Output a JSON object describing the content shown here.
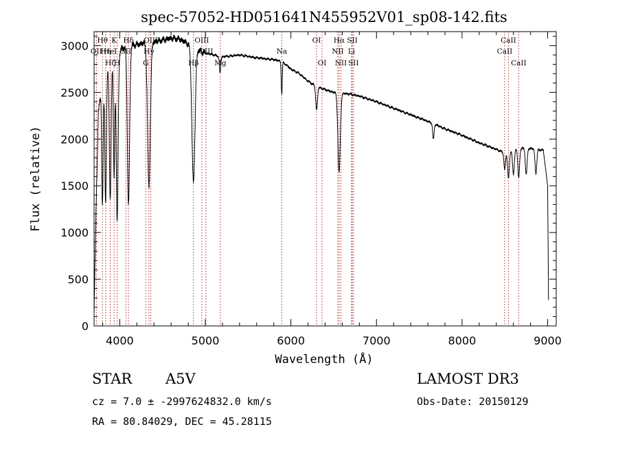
{
  "colors": {
    "spectrum": "#000000",
    "line_marker": "#b22222",
    "axes": "#000000"
  },
  "chart_data": {
    "type": "line",
    "title": "spec-57052-HD051641N455952V01_sp08-142.fits",
    "xlabel": "Wavelength (Å)",
    "ylabel": "Flux (relative)",
    "xlim": [
      3700,
      9100
    ],
    "ylim": [
      0,
      3150
    ],
    "x_ticks": [
      4000,
      5000,
      6000,
      7000,
      8000,
      9000
    ],
    "y_ticks": [
      0,
      500,
      1000,
      1500,
      2000,
      2500,
      3000
    ],
    "series": [
      {
        "name": "flux",
        "continuum": [
          [
            3700,
            150
          ],
          [
            3720,
            1100
          ],
          [
            3750,
            2300
          ],
          [
            3800,
            2600
          ],
          [
            3850,
            2750
          ],
          [
            3900,
            2850
          ],
          [
            3950,
            2900
          ],
          [
            4000,
            2950
          ],
          [
            4050,
            2980
          ],
          [
            4100,
            3000
          ],
          [
            4200,
            3010
          ],
          [
            4300,
            3030
          ],
          [
            4400,
            3040
          ],
          [
            4500,
            3060
          ],
          [
            4600,
            3080
          ],
          [
            4700,
            3070
          ],
          [
            4800,
            3020
          ],
          [
            4900,
            2960
          ],
          [
            5000,
            2920
          ],
          [
            5200,
            2880
          ],
          [
            5400,
            2900
          ],
          [
            5600,
            2870
          ],
          [
            5800,
            2850
          ],
          [
            5900,
            2830
          ],
          [
            6000,
            2750
          ],
          [
            6100,
            2700
          ],
          [
            6200,
            2620
          ],
          [
            6300,
            2560
          ],
          [
            6400,
            2530
          ],
          [
            6500,
            2500
          ],
          [
            6600,
            2490
          ],
          [
            6700,
            2480
          ],
          [
            6800,
            2460
          ],
          [
            7000,
            2400
          ],
          [
            7200,
            2330
          ],
          [
            7400,
            2260
          ],
          [
            7600,
            2190
          ],
          [
            7800,
            2110
          ],
          [
            8000,
            2040
          ],
          [
            8200,
            1960
          ],
          [
            8400,
            1890
          ],
          [
            8500,
            1850
          ],
          [
            8700,
            1900
          ],
          [
            8800,
            1900
          ],
          [
            8950,
            1880
          ],
          [
            9000,
            1500
          ],
          [
            9010,
            280
          ]
        ],
        "absorption": [
          {
            "center": 3798,
            "depth": 1300,
            "width": 8
          },
          {
            "center": 3835,
            "depth": 1400,
            "width": 9
          },
          {
            "center": 3889,
            "depth": 1500,
            "width": 10
          },
          {
            "center": 3934,
            "depth": 1300,
            "width": 8
          },
          {
            "center": 3970,
            "depth": 1800,
            "width": 11
          },
          {
            "center": 4102,
            "depth": 1700,
            "width": 13
          },
          {
            "center": 4341,
            "depth": 1550,
            "width": 16
          },
          {
            "center": 4861,
            "depth": 1450,
            "width": 18
          },
          {
            "center": 5172,
            "depth": 180,
            "width": 8
          },
          {
            "center": 5893,
            "depth": 350,
            "width": 6
          },
          {
            "center": 6300,
            "depth": 250,
            "width": 10
          },
          {
            "center": 6563,
            "depth": 850,
            "width": 14
          },
          {
            "center": 7665,
            "depth": 170,
            "width": 8
          },
          {
            "center": 8498,
            "depth": 180,
            "width": 9
          },
          {
            "center": 8542,
            "depth": 280,
            "width": 10
          },
          {
            "center": 8600,
            "depth": 250,
            "width": 10
          },
          {
            "center": 8662,
            "depth": 300,
            "width": 10
          },
          {
            "center": 8750,
            "depth": 280,
            "width": 10
          },
          {
            "center": 8863,
            "depth": 260,
            "width": 10
          }
        ]
      }
    ],
    "spectral_lines": [
      {
        "label": "Hθ",
        "wavelength": 3798,
        "row": 1
      },
      {
        "label": "OII",
        "wavelength": 3727,
        "row": 2
      },
      {
        "label": "Hη",
        "wavelength": 3835,
        "row": 2
      },
      {
        "label": "Hζ",
        "wavelength": 3889,
        "row": 3
      },
      {
        "label": "K",
        "wavelength": 3934,
        "row": 1
      },
      {
        "label": "HeI",
        "wavelength": 3889,
        "row": 2
      },
      {
        "label": "H",
        "wavelength": 3969,
        "row": 3
      },
      {
        "label": "SII",
        "wavelength": 4072,
        "row": 2
      },
      {
        "label": "Hδ",
        "wavelength": 4102,
        "row": 1
      },
      {
        "label": "OIII",
        "wavelength": 4363,
        "row": 1
      },
      {
        "label": "Hγ",
        "wavelength": 4341,
        "row": 2
      },
      {
        "label": "G",
        "wavelength": 4304,
        "row": 3
      },
      {
        "label": "OIII",
        "wavelength": 4959,
        "row": 1
      },
      {
        "label": "OIII",
        "wavelength": 5007,
        "row": 2
      },
      {
        "label": "Hβ",
        "wavelength": 4861,
        "row": 3
      },
      {
        "label": "Mg",
        "wavelength": 5175,
        "row": 3
      },
      {
        "label": "Na",
        "wavelength": 5893,
        "row": 2
      },
      {
        "label": "OI",
        "wavelength": 6300,
        "row": 1
      },
      {
        "label": "OI",
        "wavelength": 6364,
        "row": 3
      },
      {
        "label": "Hα",
        "wavelength": 6563,
        "row": 1
      },
      {
        "label": "SII",
        "wavelength": 6717,
        "row": 1
      },
      {
        "label": "NII",
        "wavelength": 6548,
        "row": 2
      },
      {
        "label": "Li",
        "wavelength": 6708,
        "row": 2
      },
      {
        "label": "NII",
        "wavelength": 6584,
        "row": 3
      },
      {
        "label": "SII",
        "wavelength": 6731,
        "row": 3
      },
      {
        "label": "CaII",
        "wavelength": 8542,
        "row": 1
      },
      {
        "label": "CaII",
        "wavelength": 8498,
        "row": 2
      },
      {
        "label": "CaII",
        "wavelength": 8662,
        "row": 3
      }
    ]
  },
  "info": {
    "object_type": "STAR",
    "subclass": "A5V",
    "survey": "LAMOST DR3",
    "redshift": "cz = 7.0 ± -2997624832.0 km/s",
    "obs_date": "Obs-Date: 20150129",
    "coords": "RA =  80.84029, DEC =  45.28115"
  }
}
